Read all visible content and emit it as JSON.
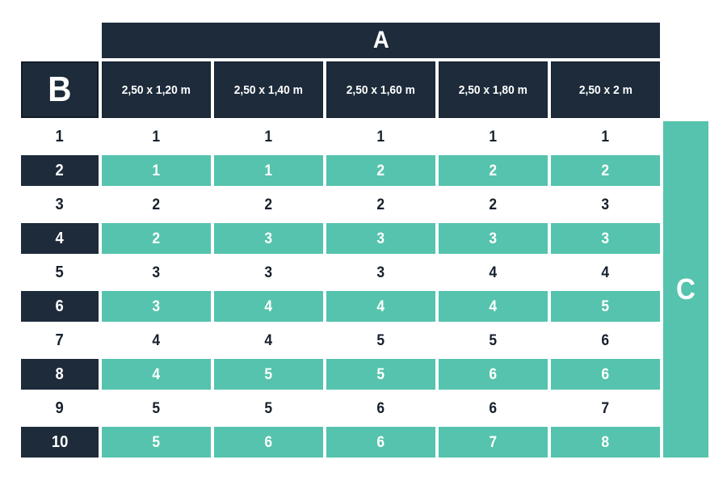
{
  "colors": {
    "navy": "#1d2b3b",
    "teal": "#55c3ad",
    "dark_text": "#17212e",
    "background": "#ffffff"
  },
  "chart_data": {
    "type": "table",
    "col_axis_label": "A",
    "row_axis_label": "B",
    "side_axis_label": "C",
    "column_headers": [
      "2,50 x 1,20 m",
      "2,50 x 1,40 m",
      "2,50 x 1,60 m",
      "2,50 x 1,80 m",
      "2,50 x 2 m"
    ],
    "rows": [
      {
        "label": "1",
        "highlighted": false,
        "values": [
          "1",
          "1",
          "1",
          "1",
          "1"
        ]
      },
      {
        "label": "2",
        "highlighted": true,
        "values": [
          "1",
          "1",
          "2",
          "2",
          "2"
        ]
      },
      {
        "label": "3",
        "highlighted": false,
        "values": [
          "2",
          "2",
          "2",
          "2",
          "3"
        ]
      },
      {
        "label": "4",
        "highlighted": true,
        "values": [
          "2",
          "3",
          "3",
          "3",
          "3"
        ]
      },
      {
        "label": "5",
        "highlighted": false,
        "values": [
          "3",
          "3",
          "3",
          "4",
          "4"
        ]
      },
      {
        "label": "6",
        "highlighted": true,
        "values": [
          "3",
          "4",
          "4",
          "4",
          "5"
        ]
      },
      {
        "label": "7",
        "highlighted": false,
        "values": [
          "4",
          "4",
          "5",
          "5",
          "6"
        ]
      },
      {
        "label": "8",
        "highlighted": true,
        "values": [
          "4",
          "5",
          "5",
          "6",
          "6"
        ]
      },
      {
        "label": "9",
        "highlighted": false,
        "values": [
          "5",
          "5",
          "6",
          "6",
          "7"
        ]
      },
      {
        "label": "10",
        "highlighted": true,
        "values": [
          "5",
          "6",
          "6",
          "7",
          "8"
        ]
      }
    ]
  }
}
